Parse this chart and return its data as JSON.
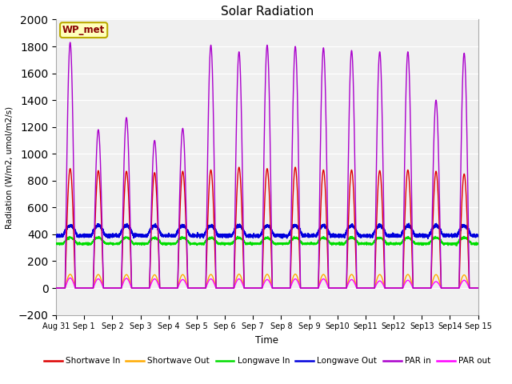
{
  "title": "Solar Radiation",
  "ylabel": "Radiation (W/m2, umol/m2/s)",
  "xlabel": "Time",
  "ylim": [
    -200,
    2000
  ],
  "yticks": [
    -200,
    0,
    200,
    400,
    600,
    800,
    1000,
    1200,
    1400,
    1600,
    1800,
    2000
  ],
  "plot_bg_color": "#f0f0f0",
  "legend_entries": [
    "Shortwave In",
    "Shortwave Out",
    "Longwave In",
    "Longwave Out",
    "PAR in",
    "PAR out"
  ],
  "line_colors": [
    "#dd0000",
    "#ffaa00",
    "#00dd00",
    "#0000dd",
    "#aa00cc",
    "#ff00ff"
  ],
  "annotation_text": "WP_met",
  "annotation_box_color": "#ffffbb",
  "annotation_box_edge": "#bbaa00",
  "annotation_text_color": "#880000",
  "tick_labels": [
    "Aug 31",
    "Sep 1",
    "Sep 2",
    "Sep 3",
    "Sep 4",
    "Sep 5",
    "Sep 6",
    "Sep 7",
    "Sep 8",
    "Sep 9",
    "Sep10",
    "Sep11",
    "Sep12",
    "Sep13",
    "Sep14",
    "Sep 15"
  ],
  "tick_positions": [
    0,
    1,
    2,
    3,
    4,
    5,
    6,
    7,
    8,
    9,
    10,
    11,
    12,
    13,
    14,
    15
  ],
  "par_in_peaks": [
    1830,
    1180,
    1270,
    1100,
    1190,
    1810,
    1760,
    1810,
    1800,
    1790,
    1770,
    1760,
    1760,
    1400,
    1750
  ],
  "sw_in_peaks": [
    890,
    875,
    870,
    860,
    870,
    880,
    900,
    890,
    900,
    880,
    880,
    875,
    880,
    870,
    850
  ],
  "par_out_peaks": [
    75,
    68,
    72,
    68,
    63,
    68,
    68,
    63,
    68,
    68,
    63,
    53,
    58,
    48,
    58
  ],
  "sw_out_ratio": 0.115,
  "lw_in_base": 330,
  "lw_in_bump": 45,
  "lw_out_base": 390,
  "lw_out_bump": 75,
  "day_rise": 0.32,
  "day_set": 0.68
}
